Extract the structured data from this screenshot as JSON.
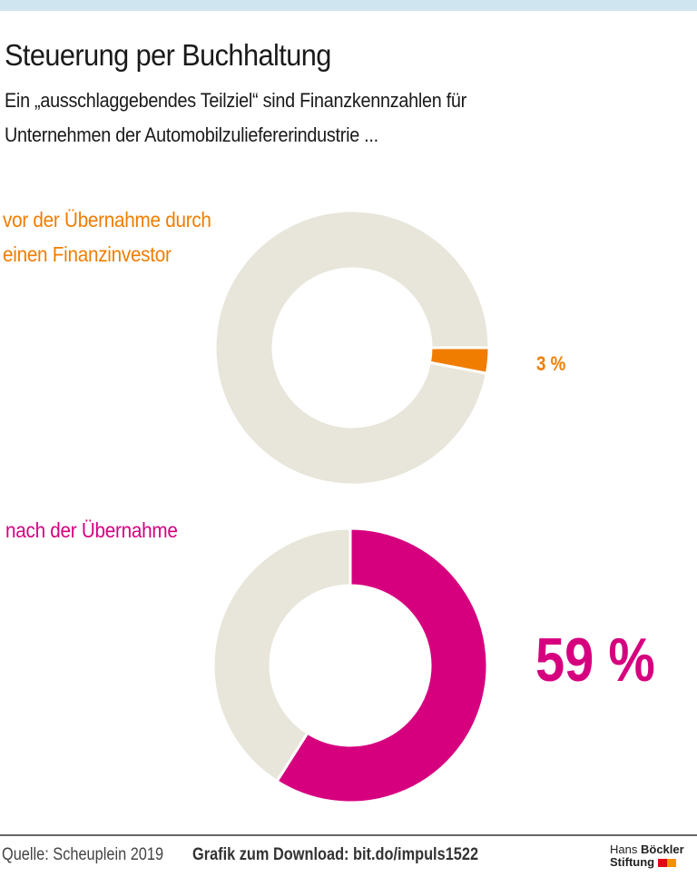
{
  "title": "Steuerung per Buchhaltung",
  "subtitle_line1": "Ein „ausschlaggebendes Teilziel“ sind Finanzkennzahlen für",
  "subtitle_line2": "Unternehmen der Automobilzuliefererindustrie ...",
  "colors": {
    "remainder": "#e8e6da",
    "before": "#f07d00",
    "after": "#d6007f",
    "top_band": "#cfe5ef"
  },
  "chart_data": [
    {
      "type": "pie",
      "donut": true,
      "label_line1": "vor der Übernahme durch",
      "label_line2": "einen Finanzinvestor",
      "value": 3,
      "value_label": "3 %",
      "slices": [
        {
          "value": 3,
          "color": "#f07d00"
        },
        {
          "value": 97,
          "color": "#e8e6da"
        }
      ]
    },
    {
      "type": "pie",
      "donut": true,
      "label_line1": "nach der Übernahme",
      "value": 59,
      "value_label": "59 %",
      "slices": [
        {
          "value": 59,
          "color": "#d6007f"
        },
        {
          "value": 41,
          "color": "#e8e6da"
        }
      ]
    }
  ],
  "footer": {
    "source": "Quelle: Scheuplein 2019",
    "download": "Grafik zum Download: bit.do/impuls1522",
    "logo_line1_a": "Hans",
    "logo_line1_b": "Böckler",
    "logo_line2": "Stiftung"
  }
}
